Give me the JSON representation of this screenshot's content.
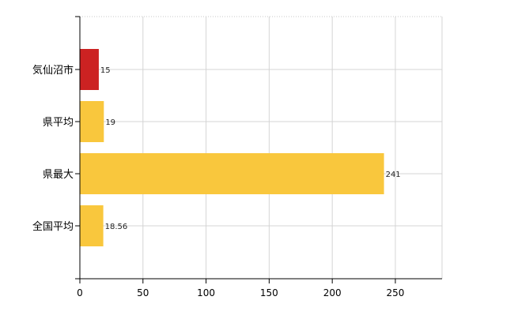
{
  "chart_data": {
    "type": "bar",
    "orientation": "horizontal",
    "categories": [
      "気仙沼市",
      "県平均",
      "県最大",
      "全国平均"
    ],
    "values": [
      15,
      19,
      241,
      18.56
    ],
    "value_labels": [
      "15",
      "19",
      "241",
      "18.56"
    ],
    "bar_colors": [
      "#cc2222",
      "#f9c73d",
      "#f9c73d",
      "#f9c73d"
    ],
    "x_ticks": [
      "0",
      "50",
      "100",
      "150",
      "200",
      "250"
    ],
    "xlim": [
      0,
      287
    ],
    "grid": true,
    "grid_color": "#d4d4d4",
    "title": "",
    "xlabel": "",
    "ylabel": ""
  }
}
